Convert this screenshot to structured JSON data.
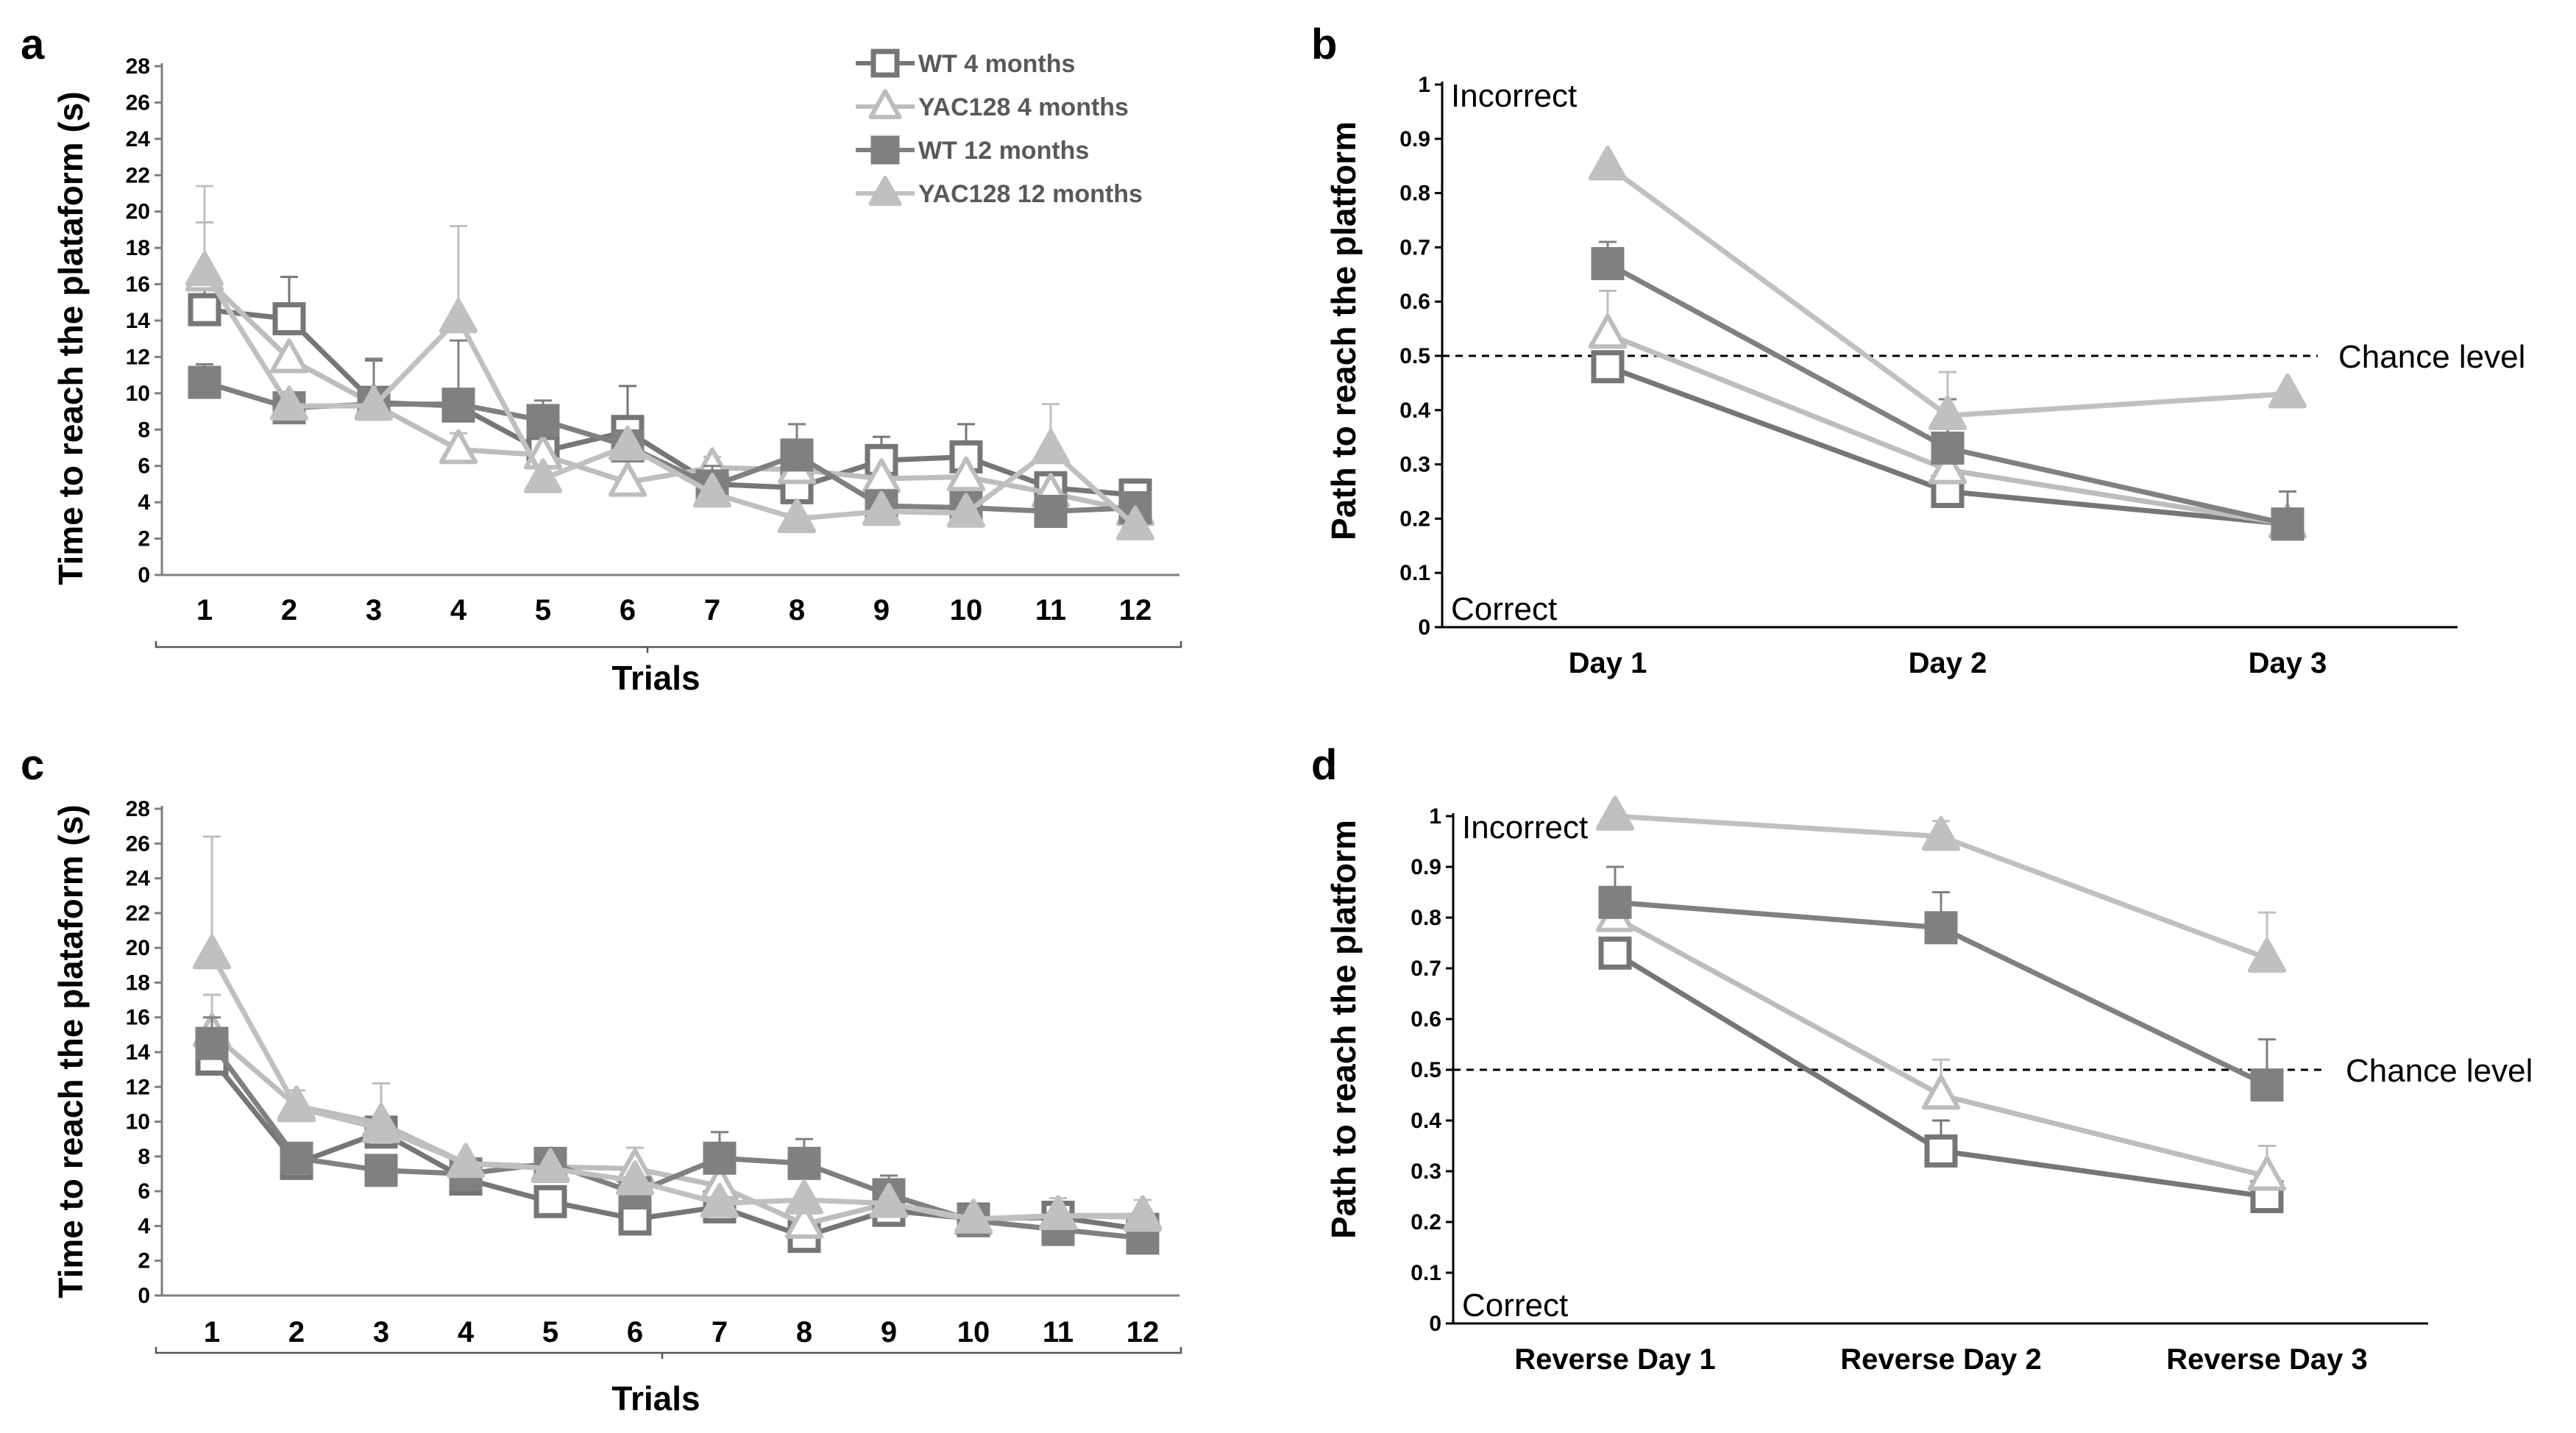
{
  "series_styles": [
    {
      "name": "WT 4 months",
      "color": "#767676",
      "marker": "square",
      "filled": false
    },
    {
      "name": "YAC128 4 months",
      "color": "#bdbdbd",
      "marker": "triangle",
      "filled": false
    },
    {
      "name": "WT 12 months",
      "color": "#808080",
      "marker": "square",
      "filled": true
    },
    {
      "name": "YAC128 12 months",
      "color": "#c0c0c0",
      "marker": "triangle",
      "filled": true
    }
  ],
  "chart_data": [
    {
      "panel": "a",
      "type": "line",
      "xlabel": "Trials",
      "ylabel": "Time to reach the plataform (s)",
      "categories": [
        "1",
        "2",
        "3",
        "4",
        "5",
        "6",
        "7",
        "8",
        "9",
        "10",
        "11",
        "12"
      ],
      "ylim": [
        0,
        28
      ],
      "yticks": [
        "0",
        "2",
        "4",
        "6",
        "8",
        "10",
        "12",
        "14",
        "16",
        "18",
        "20",
        "22",
        "24",
        "26",
        "28"
      ],
      "legend_position": "top-center",
      "series": [
        {
          "name": "WT 4 months",
          "values": [
            14.6,
            14.1,
            9.5,
            9.3,
            6.8,
            7.9,
            5.0,
            4.8,
            6.3,
            6.5,
            4.8,
            4.4
          ],
          "errors": [
            4.8,
            2.3,
            2.3,
            0,
            0,
            2.5,
            0,
            0,
            1.3,
            1.8,
            0,
            0.7
          ]
        },
        {
          "name": "YAC128 4 months",
          "values": [
            16.4,
            11.9,
            9.4,
            6.9,
            6.6,
            5.1,
            5.9,
            5.8,
            5.3,
            5.4,
            4.5,
            3.5
          ],
          "errors": [
            3.0,
            0,
            0,
            0.9,
            0,
            0,
            0.6,
            0,
            0,
            0,
            0,
            0
          ]
        },
        {
          "name": "WT 12 months",
          "values": [
            10.6,
            9.2,
            9.4,
            9.4,
            8.5,
            7.1,
            4.9,
            6.6,
            3.8,
            3.7,
            3.5,
            3.7
          ],
          "errors": [
            1.0,
            0,
            2.5,
            3.5,
            1.1,
            0,
            1.1,
            1.7,
            0,
            0,
            0,
            0
          ]
        },
        {
          "name": "YAC128 12 months",
          "values": [
            16.7,
            9.3,
            9.3,
            14.1,
            5.3,
            7.1,
            4.5,
            3.1,
            3.5,
            3.4,
            6.9,
            2.7
          ],
          "errors": [
            4.7,
            0,
            0,
            5.1,
            0,
            0,
            0,
            0,
            0,
            0,
            2.5,
            0
          ]
        }
      ]
    },
    {
      "panel": "b",
      "type": "line",
      "xlabel": "",
      "ylabel": "Path to reach the platform",
      "categories": [
        "Day 1",
        "Day 2",
        "Day 3"
      ],
      "ylim": [
        0,
        1
      ],
      "yticks": [
        "0",
        "0.1",
        "0.2",
        "0.3",
        "0.4",
        "0.5",
        "0.6",
        "0.7",
        "0.8",
        "0.9",
        "1"
      ],
      "top_label": "Incorrect",
      "bottom_label": "Correct",
      "reference_line": {
        "value": 0.5,
        "label": "Chance level"
      },
      "series": [
        {
          "name": "WT 4 months",
          "values": [
            0.48,
            0.25,
            0.19
          ],
          "errors": [
            0,
            0,
            0
          ]
        },
        {
          "name": "YAC128 4 months",
          "values": [
            0.54,
            0.29,
            0.19
          ],
          "errors": [
            0.08,
            0,
            0
          ]
        },
        {
          "name": "WT 12 months",
          "values": [
            0.67,
            0.33,
            0.19
          ],
          "errors": [
            0.04,
            0.09,
            0.06
          ]
        },
        {
          "name": "YAC128 12 months",
          "values": [
            0.85,
            0.39,
            0.43
          ],
          "errors": [
            0,
            0.08,
            0
          ]
        }
      ]
    },
    {
      "panel": "c",
      "type": "line",
      "xlabel": "Trials",
      "ylabel": "Time to reach the plataform (s)",
      "categories": [
        "1",
        "2",
        "3",
        "4",
        "5",
        "6",
        "7",
        "8",
        "9",
        "10",
        "11",
        "12"
      ],
      "ylim": [
        0,
        28
      ],
      "yticks": [
        "0",
        "2",
        "4",
        "6",
        "8",
        "10",
        "12",
        "14",
        "16",
        "18",
        "20",
        "22",
        "24",
        "26",
        "28"
      ],
      "series": [
        {
          "name": "WT 4 months",
          "values": [
            13.6,
            7.6,
            9.4,
            6.7,
            5.4,
            4.4,
            5.1,
            3.4,
            4.9,
            4.4,
            4.5,
            3.8
          ],
          "errors": [
            0,
            0,
            0,
            0,
            0,
            0,
            0,
            0,
            0,
            0.8,
            0,
            0
          ]
        },
        {
          "name": "YAC128 4 months",
          "values": [
            15.1,
            10.9,
            9.9,
            7.6,
            7.4,
            7.3,
            6.3,
            4.1,
            5.3,
            4.3,
            4.6,
            4.6
          ],
          "errors": [
            2.2,
            0,
            2.3,
            0,
            0,
            1.2,
            0,
            0,
            0,
            0,
            1.0,
            0
          ]
        },
        {
          "name": "WT 12 months",
          "values": [
            14.5,
            7.9,
            7.2,
            7.0,
            7.6,
            5.9,
            7.9,
            7.6,
            5.8,
            4.3,
            3.8,
            3.3
          ],
          "errors": [
            1.5,
            0.8,
            0,
            0,
            0,
            0,
            1.5,
            1.4,
            1.1,
            0,
            0,
            0
          ]
        },
        {
          "name": "YAC128 12 months",
          "values": [
            19.6,
            10.8,
            9.6,
            7.6,
            7.3,
            6.6,
            5.3,
            5.5,
            5.3,
            4.4,
            4.6,
            4.5
          ],
          "errors": [
            6.8,
            1.0,
            0,
            0,
            0,
            0,
            0,
            0,
            0,
            0,
            0,
            1.0
          ]
        }
      ]
    },
    {
      "panel": "d",
      "type": "line",
      "xlabel": "",
      "ylabel": "Path to reach the platform",
      "categories": [
        "Reverse Day 1",
        "Reverse Day 2",
        "Reverse Day 3"
      ],
      "ylim": [
        0,
        1
      ],
      "yticks": [
        "0",
        "0.1",
        "0.2",
        "0.3",
        "0.4",
        "0.5",
        "0.6",
        "0.7",
        "0.8",
        "0.9",
        "1"
      ],
      "top_label": "Incorrect",
      "bottom_label": "Correct",
      "reference_line": {
        "value": 0.5,
        "label": "Chance level"
      },
      "series": [
        {
          "name": "WT 4 months",
          "values": [
            0.73,
            0.34,
            0.25
          ],
          "errors": [
            0,
            0.06,
            0
          ]
        },
        {
          "name": "YAC128 4 months",
          "values": [
            0.8,
            0.45,
            0.29
          ],
          "errors": [
            0,
            0.07,
            0.06
          ]
        },
        {
          "name": "WT 12 months",
          "values": [
            0.83,
            0.78,
            0.47
          ],
          "errors": [
            0.07,
            0.07,
            0.09
          ]
        },
        {
          "name": "YAC128 12 months",
          "values": [
            1.0,
            0.96,
            0.72
          ],
          "errors": [
            0,
            0.03,
            0.09
          ]
        }
      ]
    }
  ]
}
